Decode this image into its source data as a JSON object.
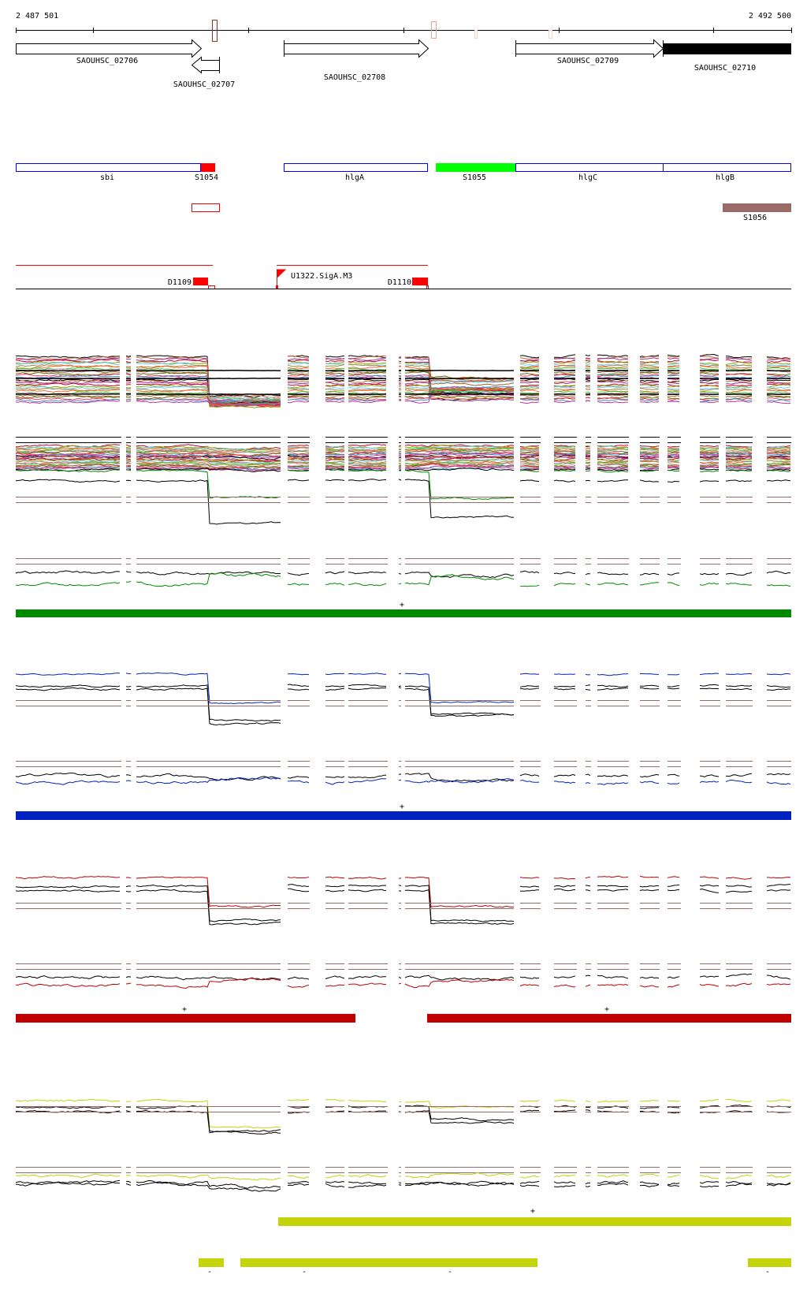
{
  "coordinates": {
    "start": "2 487 501",
    "end": "2 492 500"
  },
  "genes": [
    {
      "label": "SAOUHSC_02706",
      "strand": "+"
    },
    {
      "label": "SAOUHSC_02707",
      "strand": "-"
    },
    {
      "label": "SAOUHSC_02708",
      "strand": "+"
    },
    {
      "label": "SAOUHSC_02709",
      "strand": "+"
    },
    {
      "label": "SAOUHSC_02710",
      "strand": "+"
    }
  ],
  "annotations": [
    {
      "label": "sbi",
      "style": "outline",
      "color": "#0000ff"
    },
    {
      "label": "S1054",
      "style": "fill",
      "color": "#ff0000"
    },
    {
      "label": "hlgA",
      "style": "outline",
      "color": "#0000ff"
    },
    {
      "label": "S1055",
      "style": "fill",
      "color": "#00ff00"
    },
    {
      "label": "hlgC",
      "style": "outline",
      "color": "#0000ff"
    },
    {
      "label": "hlgB",
      "style": "outline",
      "color": "#0000ff"
    }
  ],
  "extra_features": [
    {
      "label": "S1056",
      "color": "#9a6a67"
    }
  ],
  "regulatory": [
    {
      "label": "D1109",
      "color": "#ff0000"
    },
    {
      "label": "U1322.SigA.M3",
      "color": "#ff0000"
    },
    {
      "label": "D1110",
      "color": "#ff0000"
    }
  ],
  "tracks": [
    {
      "color": "#008a00",
      "strand_labels": [
        "+"
      ]
    },
    {
      "color": "#0022c0",
      "strand_labels": [
        "+"
      ]
    },
    {
      "color": "#c00000",
      "strand_labels": [
        "+",
        "+"
      ]
    },
    {
      "color": "#c4d408",
      "strand_labels": [
        "+",
        "-",
        "-",
        "-",
        "-"
      ]
    }
  ],
  "reference_line_color": "#9a6a67",
  "palette": [
    "#000000",
    "#cc6633",
    "#993399",
    "#cc0033",
    "#88aa00",
    "#66ccff",
    "#aa8833",
    "#ff6633",
    "#33cc33",
    "#cc99cc",
    "#996633",
    "#666600",
    "#ff3366",
    "#3399cc",
    "#cc3399"
  ]
}
